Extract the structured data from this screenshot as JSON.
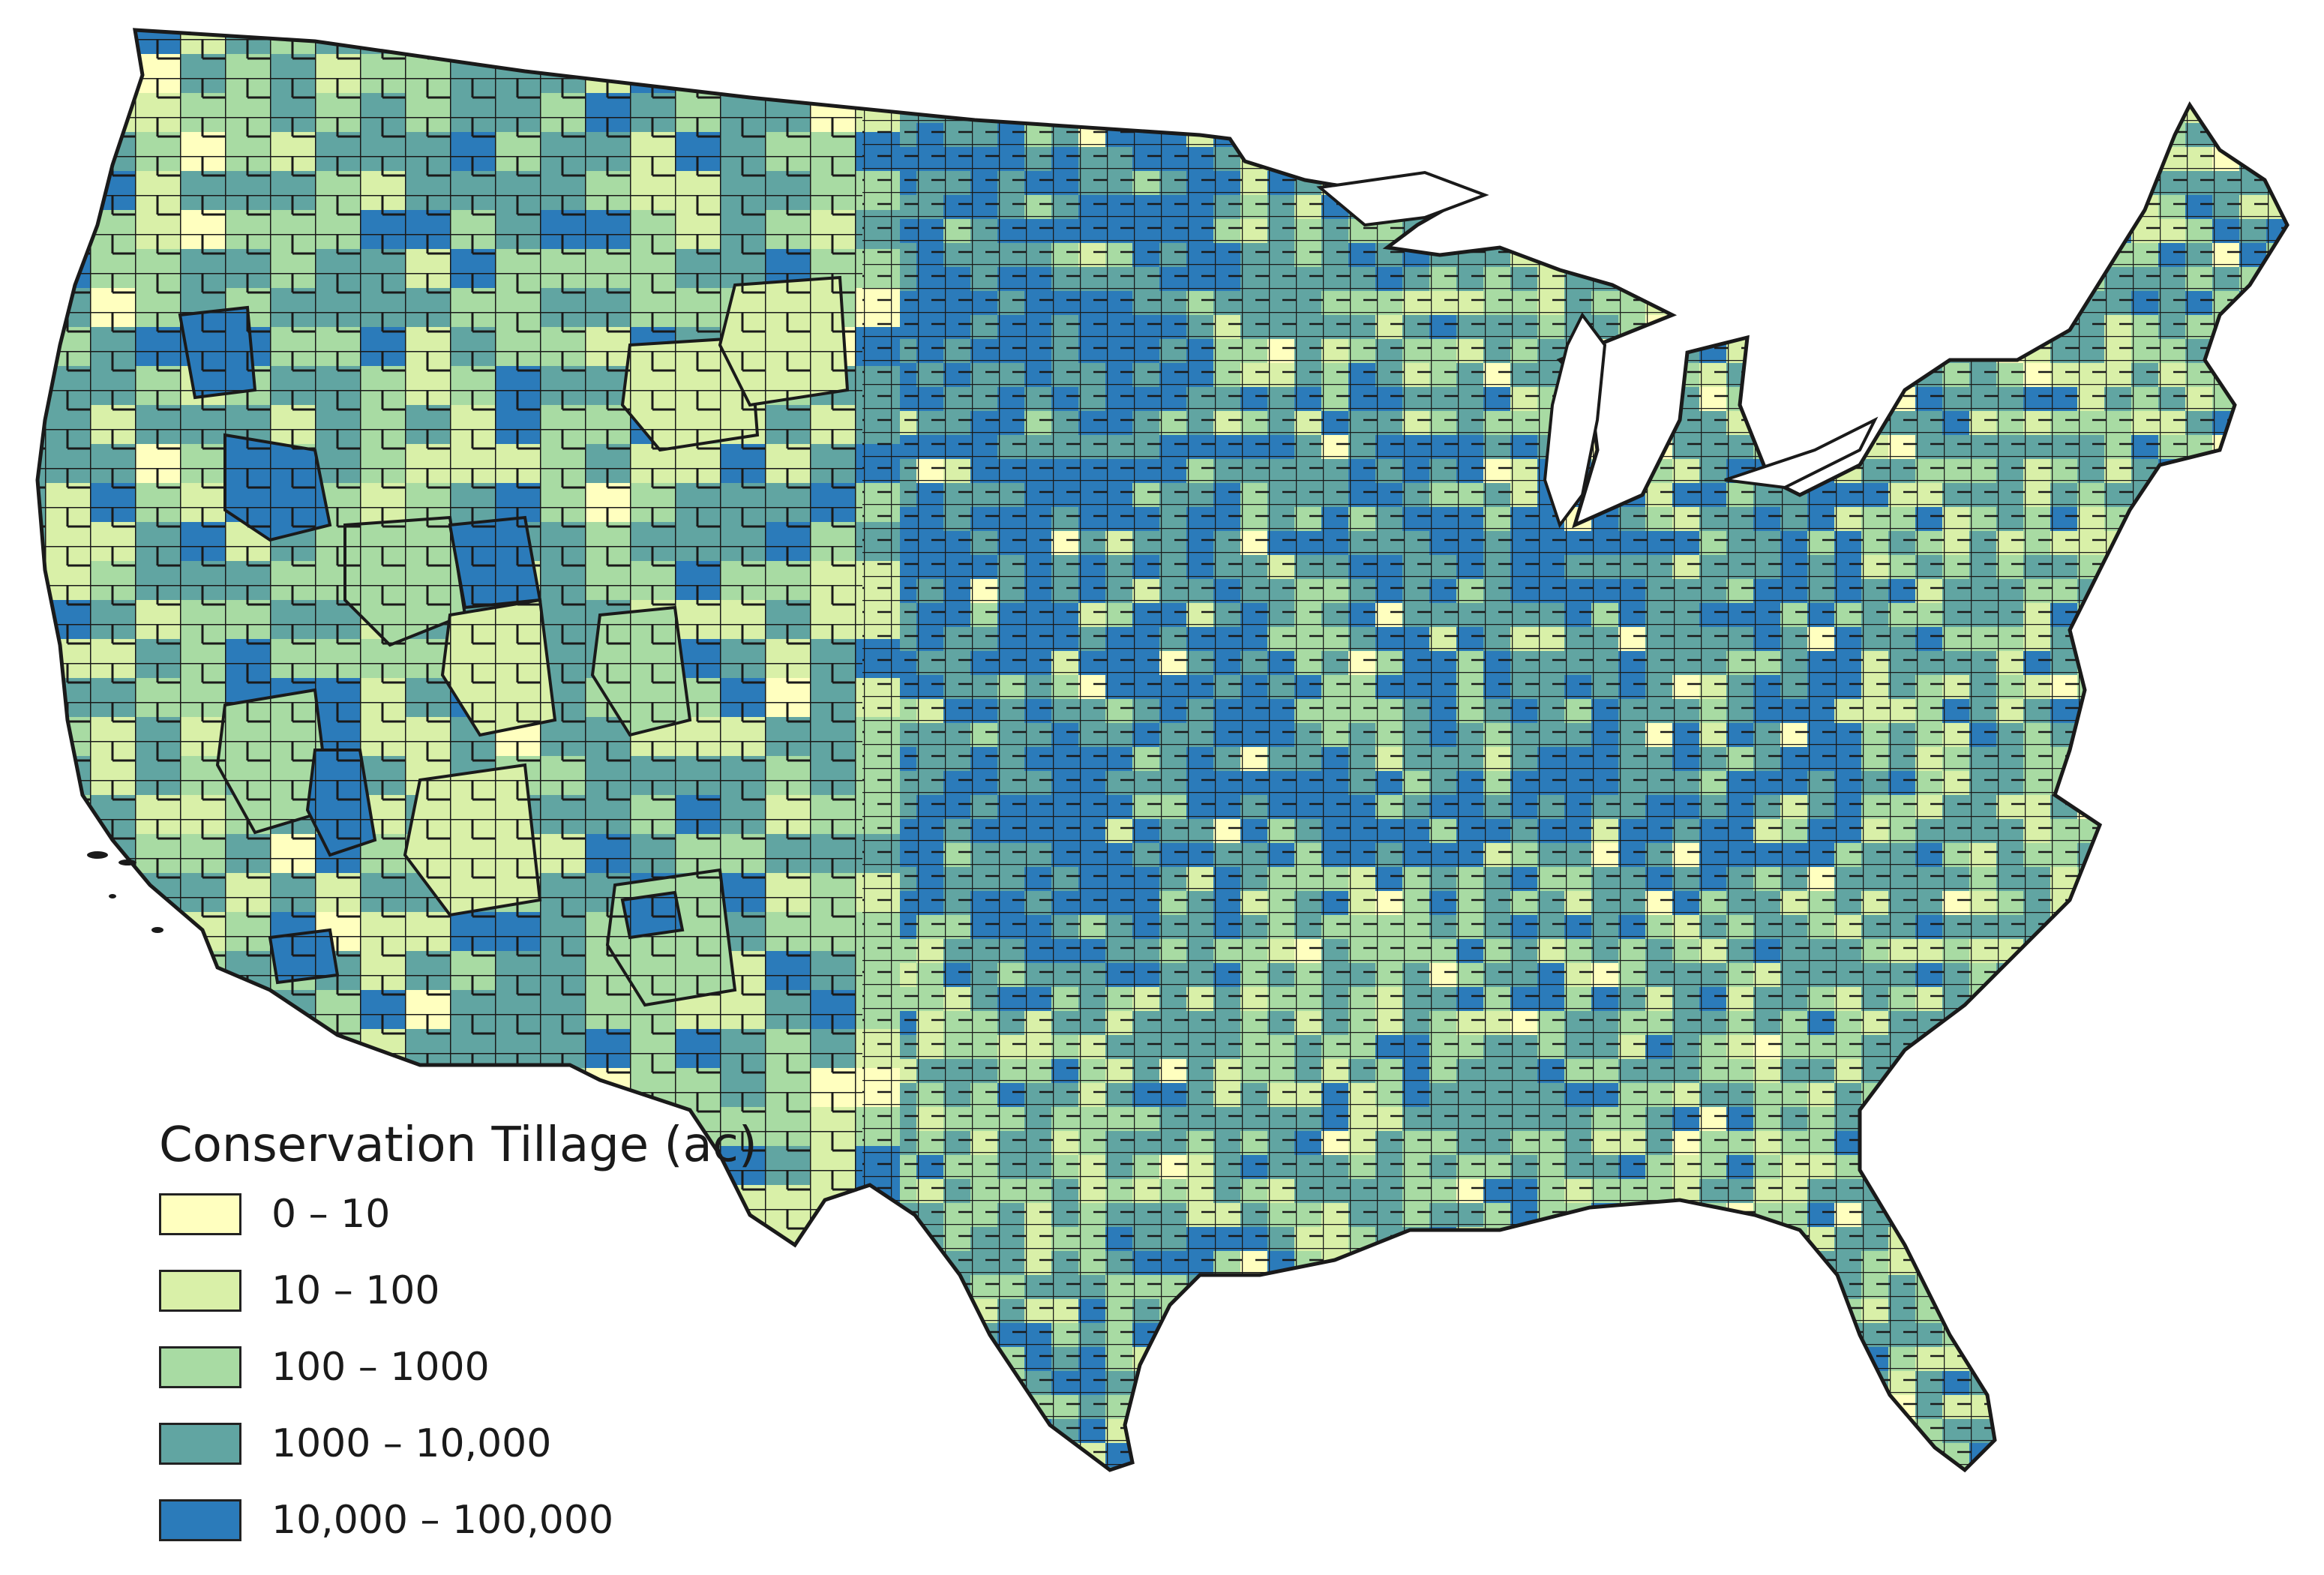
{
  "map": {
    "classes": [
      {
        "label": "0 – 10",
        "color": "#ffffbf"
      },
      {
        "label": "10 – 100",
        "color": "#d9f0a8"
      },
      {
        "label": "100 – 1000",
        "color": "#a8dba3"
      },
      {
        "label": "1000 – 10,000",
        "color": "#61a5a2"
      },
      {
        "label": "10,000 – 100,000",
        "color": "#2b7bba"
      }
    ],
    "boundary_color": "#1a1a1a"
  },
  "legend": {
    "title": "Conservation Tillage (ac)"
  }
}
